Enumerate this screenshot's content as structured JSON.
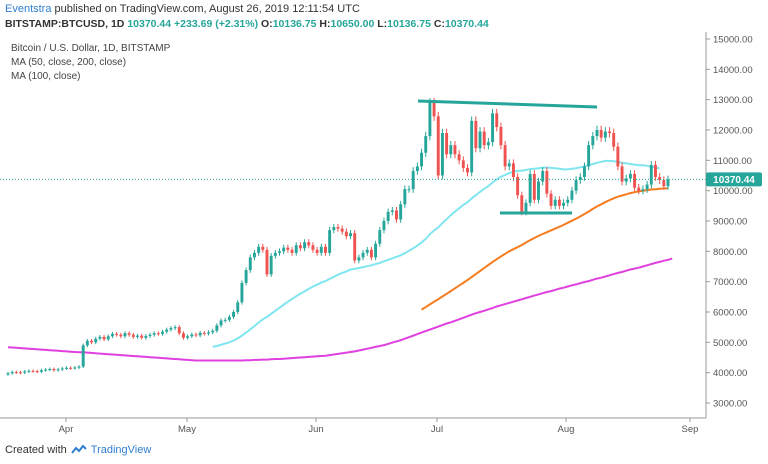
{
  "header": {
    "author": "Eventstra",
    "published_text": "published on TradingView.com, August 26, 2019 12:11:54 UTC",
    "symbol_line": "BITSTAMP:BTCUSD, 1D",
    "last": "10370.44",
    "change": "+233.69 (+2.31%)",
    "o_label": "O:",
    "o_value": "10136.75",
    "h_label": "H:",
    "h_value": "10650.00",
    "l_label": "L:",
    "l_value": "10136.75",
    "c_label": "C:",
    "c_value": "10370.44"
  },
  "legend": {
    "title": "Bitcoin / U.S. Dollar, 1D, BITSTAMP",
    "ma50": "MA (50, close, 200, close)",
    "ma100": "MA (100, close)"
  },
  "footer": {
    "created_with": "Created with",
    "brand": "TradingView"
  },
  "colors": {
    "up": "#26a69a",
    "down": "#ef5350",
    "ma_cyan": "#7fe6f0",
    "ma_orange": "#f57c1f",
    "ma_magenta": "#e040e0",
    "trendline": "#26a69a",
    "price_tag": "#26a69a"
  },
  "chart_data": {
    "type": "candlestick",
    "y_ticks": [
      "15000.00",
      "14000.00",
      "13000.00",
      "12000.00",
      "11000.00",
      "10000.00",
      "9000.00",
      "8000.00",
      "7000.00",
      "6000.00",
      "5000.00",
      "4000.00",
      "3000.00"
    ],
    "x_ticks": [
      "Apr",
      "May",
      "Jun",
      "Jul",
      "Aug",
      "Sep"
    ],
    "ylim": [
      2500,
      15200
    ],
    "last_price_label": "10370.44",
    "closes": [
      3980,
      4020,
      4010,
      4000,
      4040,
      4060,
      4050,
      4030,
      4080,
      4100,
      4120,
      4080,
      4110,
      4140,
      4160,
      4150,
      4170,
      4200,
      4900,
      5050,
      5000,
      5120,
      5180,
      5100,
      5200,
      5280,
      5250,
      5200,
      5300,
      5250,
      5180,
      5220,
      5150,
      5210,
      5250,
      5300,
      5280,
      5350,
      5420,
      5470,
      5500,
      5300,
      5150,
      5200,
      5260,
      5230,
      5310,
      5290,
      5330,
      5380,
      5560,
      5720,
      5740,
      5840,
      6000,
      6320,
      6960,
      7380,
      7800,
      7950,
      8150,
      8050,
      7240,
      7850,
      7950,
      8000,
      8120,
      8050,
      7950,
      8200,
      8100,
      8300,
      8200,
      8050,
      7950,
      8150,
      7950,
      8700,
      8800,
      8750,
      8650,
      8500,
      8600,
      7700,
      7800,
      7950,
      8050,
      7800,
      8250,
      8700,
      9000,
      9300,
      9350,
      9050,
      9550,
      10050,
      10050,
      10650,
      10800,
      11250,
      11800,
      12900,
      12450,
      10500,
      11900,
      11200,
      11500,
      11200,
      11000,
      10750,
      10600,
      12300,
      11400,
      11950,
      11500,
      11600,
      12550,
      12100,
      11500,
      10800,
      10900,
      10450,
      9850,
      9300,
      9600,
      10550,
      9700,
      10300,
      10650,
      9900,
      9500,
      9700,
      9500,
      9600,
      9700,
      10000,
      10350,
      10450,
      10800,
      11500,
      11800,
      12000,
      11750,
      11950,
      11900,
      11450,
      10800,
      10300,
      10400,
      10550,
      10100,
      10000,
      10050,
      10200,
      10850,
      10450,
      10350,
      10150,
      10370
    ],
    "ma50": [
      null,
      null,
      null,
      null,
      null,
      null,
      null,
      null,
      null,
      null,
      null,
      null,
      null,
      null,
      null,
      null,
      null,
      null,
      null,
      null,
      null,
      null,
      null,
      null,
      null,
      null,
      null,
      null,
      null,
      null,
      null,
      null,
      null,
      null,
      null,
      null,
      null,
      null,
      null,
      null,
      null,
      null,
      null,
      null,
      null,
      null,
      null,
      null,
      null,
      4850,
      4880,
      4920,
      4960,
      5000,
      5060,
      5130,
      5220,
      5320,
      5430,
      5540,
      5650,
      5760,
      5840,
      5940,
      6040,
      6140,
      6240,
      6340,
      6430,
      6520,
      6600,
      6680,
      6760,
      6840,
      6900,
      6970,
      7020,
      7090,
      7160,
      7230,
      7290,
      7340,
      7400,
      7420,
      7450,
      7480,
      7510,
      7540,
      7580,
      7620,
      7670,
      7720,
      7770,
      7820,
      7870,
      7940,
      8020,
      8100,
      8190,
      8290,
      8410,
      8560,
      8690,
      8790,
      8930,
      9060,
      9190,
      9310,
      9420,
      9530,
      9620,
      9750,
      9850,
      9960,
      10060,
      10150,
      10270,
      10370,
      10460,
      10520,
      10580,
      10620,
      10650,
      10660,
      10680,
      10710,
      10720,
      10740,
      10760,
      10760,
      10750,
      10740,
      10720,
      10700,
      10700,
      10720,
      10740,
      10770,
      10800,
      10840,
      10880,
      10920,
      10950,
      10980,
      10980,
      10970,
      10950,
      10920,
      10900,
      10880,
      10860,
      10840,
      10840,
      10820,
      10790,
      10760,
      10740
    ],
    "ma100": [
      null,
      null,
      null,
      null,
      null,
      null,
      null,
      null,
      null,
      null,
      null,
      null,
      null,
      null,
      null,
      null,
      null,
      null,
      null,
      null,
      null,
      null,
      null,
      null,
      null,
      null,
      null,
      null,
      null,
      null,
      null,
      null,
      null,
      null,
      null,
      null,
      null,
      null,
      null,
      null,
      null,
      null,
      null,
      null,
      null,
      null,
      null,
      null,
      null,
      null,
      null,
      null,
      null,
      null,
      null,
      null,
      null,
      null,
      null,
      null,
      null,
      null,
      null,
      null,
      null,
      null,
      null,
      null,
      null,
      null,
      null,
      null,
      null,
      null,
      null,
      null,
      null,
      null,
      null,
      null,
      null,
      null,
      null,
      null,
      null,
      null,
      null,
      null,
      null,
      null,
      null,
      null,
      null,
      null,
      null,
      null,
      null,
      null,
      null,
      6080,
      6160,
      6250,
      6340,
      6420,
      6510,
      6600,
      6690,
      6780,
      6870,
      6960,
      7050,
      7150,
      7250,
      7350,
      7450,
      7550,
      7650,
      7740,
      7830,
      7920,
      8000,
      8070,
      8140,
      8210,
      8290,
      8370,
      8440,
      8510,
      8570,
      8630,
      8690,
      8750,
      8810,
      8870,
      8940,
      9010,
      9080,
      9150,
      9230,
      9310,
      9400,
      9480,
      9550,
      9620,
      9690,
      9750,
      9800,
      9840,
      9880,
      9920,
      9950,
      9980,
      10000,
      10020,
      10040,
      10050,
      10060,
      10070,
      10080
    ],
    "ma200": [
      4840,
      4830,
      4820,
      4810,
      4800,
      4790,
      4780,
      4770,
      4760,
      4750,
      4740,
      4730,
      4720,
      4710,
      4700,
      4690,
      4680,
      4670,
      4670,
      4660,
      4650,
      4640,
      4630,
      4620,
      4610,
      4600,
      4590,
      4580,
      4570,
      4560,
      4550,
      4540,
      4530,
      4520,
      4510,
      4500,
      4490,
      4480,
      4470,
      4460,
      4450,
      4440,
      4430,
      4420,
      4410,
      4400,
      4400,
      4400,
      4400,
      4400,
      4400,
      4400,
      4400,
      4400,
      4400,
      4400,
      4400,
      4410,
      4410,
      4420,
      4420,
      4430,
      4430,
      4440,
      4450,
      4450,
      4460,
      4470,
      4480,
      4490,
      4500,
      4510,
      4520,
      4530,
      4540,
      4550,
      4560,
      4580,
      4600,
      4620,
      4640,
      4660,
      4680,
      4700,
      4730,
      4760,
      4790,
      4820,
      4850,
      4880,
      4910,
      4950,
      4990,
      5030,
      5070,
      5120,
      5170,
      5220,
      5270,
      5320,
      5370,
      5420,
      5470,
      5520,
      5570,
      5620,
      5660,
      5710,
      5760,
      5810,
      5860,
      5910,
      5960,
      6000,
      6040,
      6090,
      6130,
      6180,
      6220,
      6260,
      6300,
      6340,
      6380,
      6420,
      6460,
      6500,
      6540,
      6580,
      6620,
      6660,
      6690,
      6730,
      6770,
      6800,
      6840,
      6880,
      6910,
      6950,
      6990,
      7020,
      7060,
      7100,
      7130,
      7170,
      7210,
      7250,
      7290,
      7320,
      7360,
      7400,
      7430,
      7460,
      7500,
      7540,
      7580,
      7620,
      7650,
      7690,
      7720,
      7760
    ]
  }
}
